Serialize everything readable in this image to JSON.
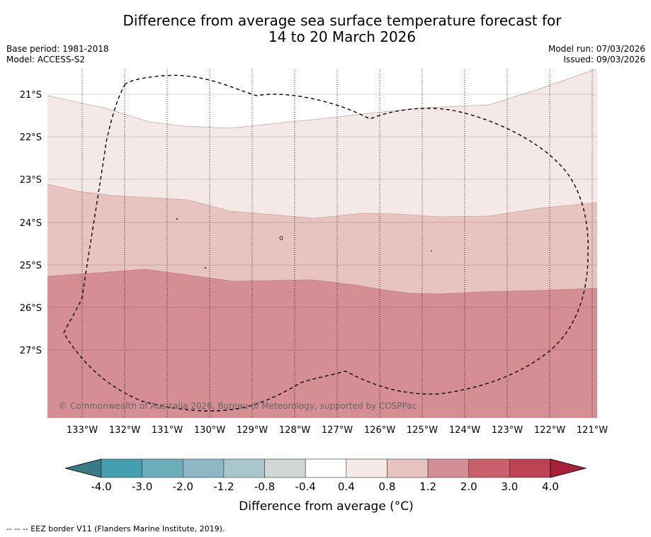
{
  "title_line1": "Difference from average sea surface temperature forecast for",
  "title_line2": "14 to 20 March 2026",
  "base_period": "Base period: 1981-2018",
  "model": "Model: ACCESS-S2",
  "model_run": "Model run: 07/03/2026",
  "issued": "Issued: 09/03/2026",
  "copyright": "© Commonwealth of Australia 2026, Bureau of Meteorology, supported by COSPPac",
  "lat_labels": [
    "21°S",
    "22°S",
    "23°S",
    "24°S",
    "25°S",
    "26°S",
    "27°S"
  ],
  "lon_labels": [
    "133°W",
    "132°W",
    "131°W",
    "130°W",
    "129°W",
    "128°W",
    "127°W",
    "126°W",
    "125°W",
    "124°W",
    "123°W",
    "122°W",
    "121°W"
  ],
  "colorbar": {
    "ticks": [
      "-4.0",
      "-3.0",
      "-2.0",
      "-1.2",
      "-0.8",
      "-0.4",
      "0.4",
      "0.8",
      "1.2",
      "2.0",
      "3.0",
      "4.0"
    ],
    "colors": [
      "#459fb0",
      "#6badb9",
      "#8cb8c3",
      "#a9c6cb",
      "#d3d6d7",
      "#ffffff",
      "#f5e9e8",
      "#e8c4c1",
      "#d68e95",
      "#c9606b",
      "#bd4354"
    ],
    "low_extend_color": "#3a7a85",
    "high_extend_color": "#a82037",
    "title": "Difference from average (°C)"
  },
  "chart_data": {
    "type": "contour-map",
    "variable": "Difference from average sea surface temperature (°C)",
    "lat_range": [
      "20.4°S",
      "28.6°S"
    ],
    "lon_range": [
      "133.8°W",
      "120.9°W"
    ],
    "bands": [
      {
        "range": "0.4 to 0.8",
        "color": "#f5e9e8",
        "region": "north of about 23.1°S"
      },
      {
        "range": "0.8 to 1.2",
        "color": "#e8c4c1",
        "region": "about 23.1°S to 25.4°S"
      },
      {
        "range": "1.2 to 2.0",
        "color": "#d68e95",
        "region": "south of about 25.4°S"
      },
      {
        "range": "-0.4 to 0.4",
        "color": "#ffffff",
        "region": "far north-west corner"
      }
    ],
    "overlay": "EEZ border (dashed)"
  },
  "footer": "--  --  -- EEZ border V11 (Flanders Marine Institute, 2019)."
}
